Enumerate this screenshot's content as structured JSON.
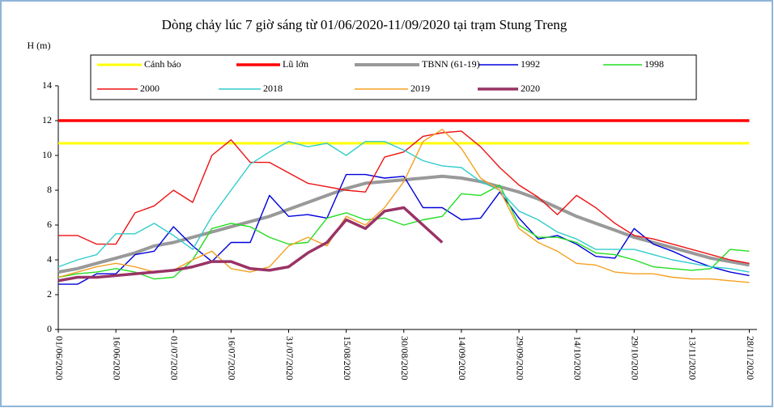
{
  "chart_data": {
    "type": "line",
    "title": "Dòng chảy lúc 7 giờ sáng từ 01/06/2020-11/09/2020 tại trạm Stung Treng",
    "y_label": "H (m)",
    "x": [
      "01/06/2020",
      "06/06/2020",
      "11/06/2020",
      "16/06/2020",
      "21/06/2020",
      "26/06/2020",
      "01/07/2020",
      "06/07/2020",
      "11/07/2020",
      "16/07/2020",
      "21/07/2020",
      "26/07/2020",
      "31/07/2020",
      "05/08/2020",
      "10/08/2020",
      "15/08/2020",
      "20/08/2020",
      "25/08/2020",
      "30/08/2020",
      "04/09/2020",
      "09/09/2020",
      "14/09/2020",
      "19/09/2020",
      "24/09/2020",
      "29/09/2020",
      "04/10/2020",
      "09/10/2020",
      "14/10/2020",
      "19/10/2020",
      "24/10/2020",
      "29/10/2020",
      "03/11/2020",
      "08/11/2020",
      "13/11/2020",
      "18/11/2020",
      "23/11/2020",
      "28/11/2020"
    ],
    "xlim": [
      "01/06/2020",
      "30/11/2020"
    ],
    "xticks": [
      "01/06/2020",
      "16/06/2020",
      "01/07/2020",
      "16/07/2020",
      "31/07/2020",
      "15/08/2020",
      "30/08/2020",
      "14/09/2020",
      "29/09/2020",
      "14/10/2020",
      "29/10/2020",
      "13/11/2020",
      "28/11/2020"
    ],
    "ylim": [
      0,
      14
    ],
    "yticks": [
      0,
      2,
      4,
      6,
      8,
      10,
      12,
      14
    ],
    "series": [
      {
        "name": "Cảnh báo",
        "color": "#ffff00",
        "values": [
          10.7,
          10.7,
          10.7,
          10.7,
          10.7,
          10.7,
          10.7,
          10.7,
          10.7,
          10.7,
          10.7,
          10.7,
          10.7,
          10.7,
          10.7,
          10.7,
          10.7,
          10.7,
          10.7,
          10.7,
          10.7,
          10.7,
          10.7,
          10.7,
          10.7,
          10.7,
          10.7,
          10.7,
          10.7,
          10.7,
          10.7,
          10.7,
          10.7,
          10.7,
          10.7,
          10.7,
          10.7
        ]
      },
      {
        "name": "Lũ lớn",
        "color": "#ff0000",
        "values": [
          12,
          12,
          12,
          12,
          12,
          12,
          12,
          12,
          12,
          12,
          12,
          12,
          12,
          12,
          12,
          12,
          12,
          12,
          12,
          12,
          12,
          12,
          12,
          12,
          12,
          12,
          12,
          12,
          12,
          12,
          12,
          12,
          12,
          12,
          12,
          12,
          12
        ]
      },
      {
        "name": "TBNN (61-19)",
        "color": "#999999",
        "values": [
          3.3,
          3.5,
          3.8,
          4.1,
          4.4,
          4.8,
          5.0,
          5.3,
          5.6,
          5.9,
          6.2,
          6.5,
          6.9,
          7.3,
          7.7,
          8.1,
          8.4,
          8.5,
          8.6,
          8.7,
          8.8,
          8.7,
          8.5,
          8.2,
          7.9,
          7.5,
          7.0,
          6.5,
          6.1,
          5.7,
          5.3,
          5.0,
          4.7,
          4.4,
          4.1,
          3.9,
          3.7
        ]
      },
      {
        "name": "1992",
        "color": "#0000dd",
        "values": [
          2.6,
          2.6,
          3.2,
          3.2,
          4.3,
          4.5,
          5.9,
          4.8,
          3.9,
          5.0,
          5.0,
          7.7,
          6.5,
          6.6,
          6.4,
          8.9,
          8.9,
          8.7,
          8.8,
          7.0,
          7.0,
          6.3,
          6.4,
          7.9,
          6.4,
          5.2,
          5.4,
          4.9,
          4.2,
          4.1,
          5.8,
          4.9,
          4.5,
          4.0,
          3.6,
          3.3,
          3.1
        ]
      },
      {
        "name": "1998",
        "color": "#22dd22",
        "values": [
          3.0,
          3.2,
          3.3,
          3.5,
          3.3,
          2.9,
          3.0,
          4.0,
          5.8,
          6.1,
          5.9,
          5.3,
          4.9,
          5.0,
          6.4,
          6.7,
          6.3,
          6.4,
          6.0,
          6.3,
          6.5,
          7.8,
          7.7,
          8.3,
          6.0,
          5.3,
          5.3,
          5.0,
          4.4,
          4.3,
          4.0,
          3.6,
          3.5,
          3.4,
          3.5,
          4.6,
          4.5
        ]
      },
      {
        "name": "2000",
        "color": "#ee1111",
        "values": [
          5.4,
          5.4,
          4.9,
          4.9,
          6.7,
          7.1,
          8.0,
          7.3,
          10.0,
          10.9,
          9.6,
          9.6,
          9.0,
          8.4,
          8.2,
          8.0,
          7.9,
          9.9,
          10.2,
          11.1,
          11.3,
          11.4,
          10.5,
          9.3,
          8.3,
          7.6,
          6.6,
          7.7,
          7.0,
          6.1,
          5.4,
          5.2,
          4.9,
          4.6,
          4.3,
          4.0,
          3.8
        ]
      },
      {
        "name": "2018",
        "color": "#33cccc",
        "values": [
          3.6,
          4.0,
          4.3,
          5.5,
          5.5,
          6.1,
          5.4,
          4.6,
          6.5,
          8.0,
          9.5,
          10.2,
          10.8,
          10.5,
          10.7,
          10.0,
          10.8,
          10.8,
          10.3,
          9.7,
          9.4,
          9.3,
          8.5,
          8.0,
          6.8,
          6.3,
          5.6,
          5.2,
          4.6,
          4.6,
          4.6,
          4.3,
          4.0,
          3.8,
          3.6,
          3.5,
          3.3
        ]
      },
      {
        "name": "2019",
        "color": "#f5a020",
        "values": [
          3.0,
          3.3,
          3.6,
          3.8,
          3.6,
          3.3,
          3.4,
          4.0,
          4.5,
          3.5,
          3.3,
          3.6,
          4.8,
          5.3,
          4.8,
          6.5,
          6.0,
          7.0,
          8.5,
          10.8,
          11.5,
          10.4,
          8.7,
          8.0,
          5.8,
          5.0,
          4.5,
          3.8,
          3.7,
          3.3,
          3.2,
          3.2,
          3.0,
          2.9,
          2.9,
          2.8,
          2.7
        ]
      },
      {
        "name": "2020",
        "color": "#993366",
        "values": [
          2.8,
          3.0,
          3.0,
          3.1,
          3.2,
          3.3,
          3.4,
          3.6,
          3.9,
          3.9,
          3.5,
          3.4,
          3.6,
          4.4,
          5.0,
          6.3,
          5.8,
          6.8,
          7.0,
          6.0,
          5.0,
          null,
          null,
          null,
          null,
          null,
          null,
          null,
          null,
          null,
          null,
          null,
          null,
          null,
          null,
          null,
          null
        ]
      }
    ]
  }
}
